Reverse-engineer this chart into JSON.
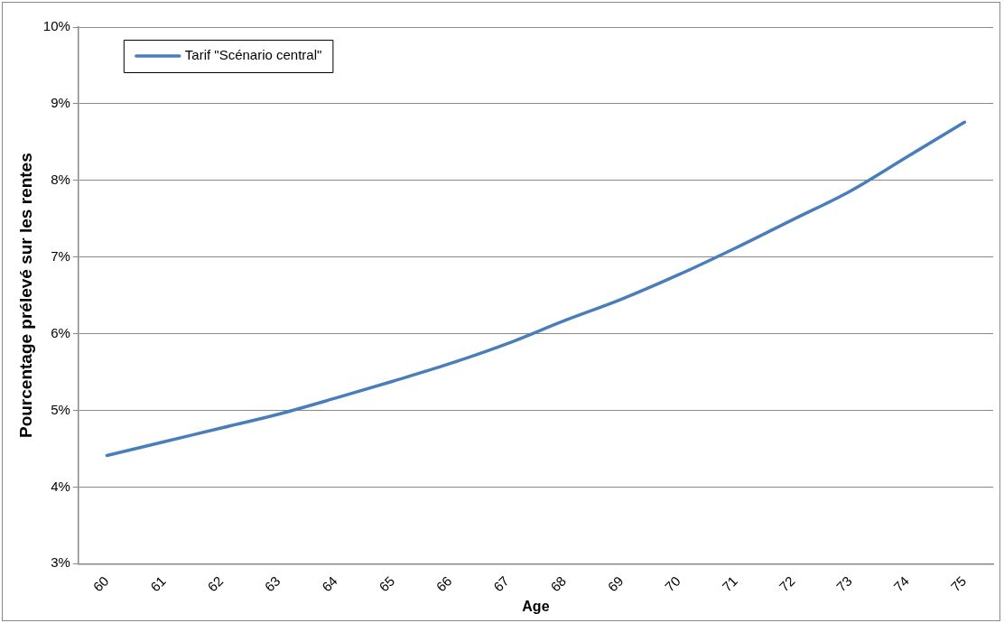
{
  "chart_data": {
    "type": "line",
    "xlabel": "Age",
    "ylabel": "Pourcentage prélevé sur les rentes",
    "categories": [
      "60",
      "61",
      "62",
      "63",
      "64",
      "65",
      "66",
      "67",
      "68",
      "69",
      "70",
      "71",
      "72",
      "73",
      "74",
      "75"
    ],
    "series": [
      {
        "name": "Tarif \"Scénario central\"",
        "color": "#4a7ebb",
        "values": [
          4.41,
          4.59,
          4.77,
          4.95,
          5.16,
          5.38,
          5.61,
          5.87,
          6.17,
          6.45,
          6.77,
          7.12,
          7.49,
          7.86,
          8.31,
          8.76
        ]
      }
    ],
    "ylim": [
      3,
      10
    ],
    "yticks": [
      {
        "value": 3,
        "label": "3%"
      },
      {
        "value": 4,
        "label": "4%"
      },
      {
        "value": 5,
        "label": "5%"
      },
      {
        "value": 6,
        "label": "6%"
      },
      {
        "value": 7,
        "label": "7%"
      },
      {
        "value": 8,
        "label": "8%"
      },
      {
        "value": 9,
        "label": "9%"
      },
      {
        "value": 10,
        "label": "10%"
      }
    ],
    "grid": "y",
    "legend": "top left",
    "marker": "none",
    "line_style": "solid"
  }
}
